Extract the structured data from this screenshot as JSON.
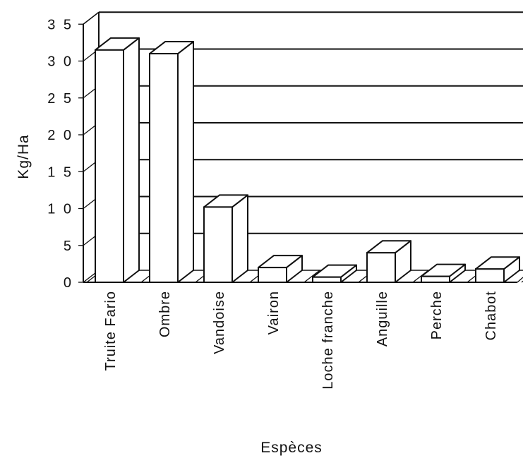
{
  "chart_data": {
    "type": "bar",
    "title": "",
    "xlabel": "Espèces",
    "ylabel": "Kg/Ha",
    "ylim": [
      0,
      35
    ],
    "yticks": [
      "0",
      "5",
      "1 0",
      "1 5",
      "2 0",
      "2 5",
      "3 0",
      "3 5"
    ],
    "grid": true,
    "three_d": true,
    "categories": [
      "Truite Fario",
      "Ombre",
      "Vandoise",
      "Vairon",
      "Loche franche",
      "Anguille",
      "Perche",
      "Chabot"
    ],
    "values": [
      31.5,
      31,
      10.2,
      2,
      0.7,
      4,
      0.8,
      1.8
    ]
  },
  "colors": {
    "bar_fill": "#ffffff",
    "stroke": "#111111",
    "background": "#ffffff"
  }
}
